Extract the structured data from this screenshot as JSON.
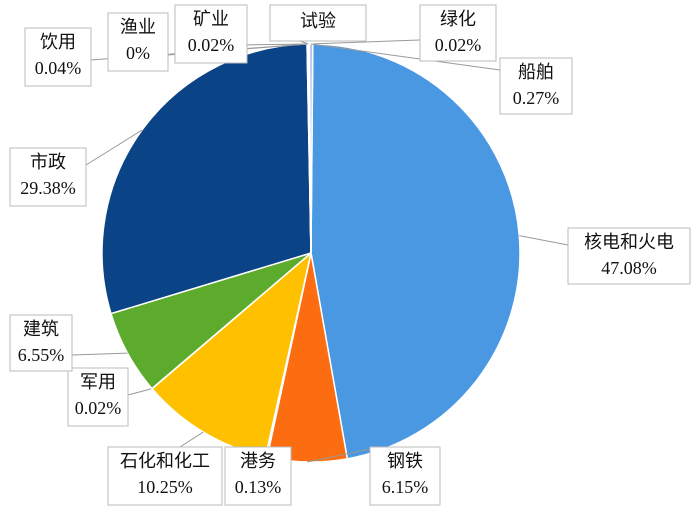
{
  "chart_data": {
    "type": "pie",
    "categories": [
      "核电和火电",
      "钢铁",
      "港务",
      "石化和化工",
      "军用",
      "建筑",
      "市政",
      "饮用",
      "渔业",
      "矿业",
      "试验",
      "绿化",
      "船舶"
    ],
    "values": [
      47.08,
      6.15,
      0.13,
      10.25,
      0.02,
      6.55,
      29.38,
      0.04,
      0,
      0.02,
      0.09,
      0.02,
      0.27
    ],
    "value_labels": [
      "47.08%",
      "6.15%",
      "0.13%",
      "10.25%",
      "0.02%",
      "6.55%",
      "29.38%",
      "0.04%",
      "0%",
      "0.02%",
      null,
      "0.02%",
      "0.27%"
    ],
    "colors": [
      "#4a97e2",
      "#fb6d10",
      "#8c8c8c",
      "#ffc000",
      "#2f6fbf",
      "#5cab2c",
      "#0b4387",
      "#7fb2e6",
      "#1f5fa8",
      "#a5a5a5",
      "#9dc3e6",
      "#4472c4",
      "#b4c7e7"
    ]
  }
}
